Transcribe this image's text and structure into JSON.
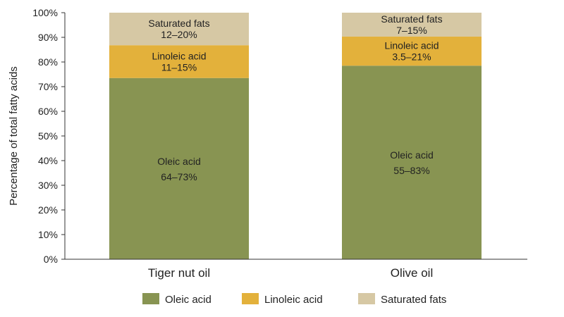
{
  "chart_data": {
    "type": "bar",
    "stacked": true,
    "ylabel": "Percentage of total fatty acids",
    "xlabel": "",
    "ylim": [
      0,
      100
    ],
    "yticks": [
      "0%",
      "10%",
      "20%",
      "30%",
      "40%",
      "50%",
      "60%",
      "70%",
      "80%",
      "90%",
      "100%"
    ],
    "grid": false,
    "legend_position": "bottom",
    "categories": [
      "Tiger nut oil",
      "Olive oil"
    ],
    "series": [
      {
        "name": "Oleic acid",
        "color": "#889452",
        "values": [
          73.5,
          78.5
        ],
        "labels": [
          {
            "name": "Oleic acid",
            "range": "64–73%"
          },
          {
            "name": "Oleic acid",
            "range": "55–83%"
          }
        ]
      },
      {
        "name": "Linoleic acid",
        "color": "#e3b13b",
        "values": [
          13.3,
          11.8
        ],
        "labels": [
          {
            "name": "Linoleic acid",
            "range": "11–15%"
          },
          {
            "name": "Linoleic acid",
            "range": "3.5–21%"
          }
        ]
      },
      {
        "name": "Saturated fats",
        "color": "#d6c8a4",
        "values": [
          13.2,
          9.7
        ],
        "labels": [
          {
            "name": "Saturated fats",
            "range": "12–20%"
          },
          {
            "name": "Saturated fats",
            "range": "7–15%"
          }
        ]
      }
    ]
  }
}
